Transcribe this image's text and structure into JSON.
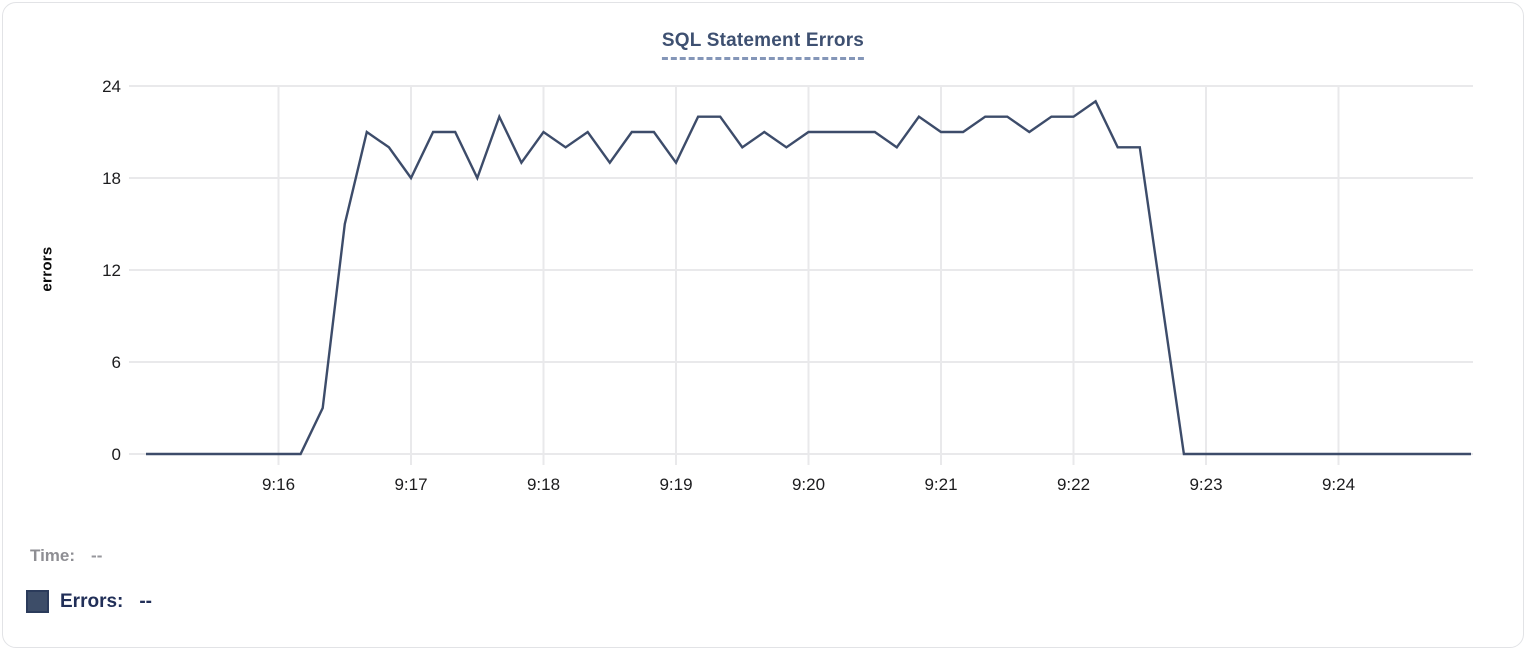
{
  "chart_data": {
    "type": "line",
    "title": "SQL Statement Errors",
    "xlabel": "",
    "ylabel": "errors",
    "ylim": [
      0,
      24
    ],
    "y_ticks": [
      0,
      6,
      12,
      18,
      24
    ],
    "x_tick_labels": [
      "9:16",
      "9:17",
      "9:18",
      "9:19",
      "9:20",
      "9:21",
      "9:22",
      "9:23",
      "9:24"
    ],
    "x_domain": [
      "9:15:00",
      "9:25:00"
    ],
    "grid": true,
    "legend_position": "bottom-left",
    "series": [
      {
        "name": "Errors",
        "color": "#3d4c6a",
        "x": [
          "9:15:00",
          "9:15:10",
          "9:15:20",
          "9:15:30",
          "9:15:40",
          "9:15:50",
          "9:16:00",
          "9:16:10",
          "9:16:20",
          "9:16:30",
          "9:16:40",
          "9:16:50",
          "9:17:00",
          "9:17:10",
          "9:17:20",
          "9:17:30",
          "9:17:40",
          "9:17:50",
          "9:18:00",
          "9:18:10",
          "9:18:20",
          "9:18:30",
          "9:18:40",
          "9:18:50",
          "9:19:00",
          "9:19:10",
          "9:19:20",
          "9:19:30",
          "9:19:40",
          "9:19:50",
          "9:20:00",
          "9:20:10",
          "9:20:20",
          "9:20:30",
          "9:20:40",
          "9:20:50",
          "9:21:00",
          "9:21:10",
          "9:21:20",
          "9:21:30",
          "9:21:40",
          "9:21:50",
          "9:22:00",
          "9:22:10",
          "9:22:20",
          "9:22:30",
          "9:22:40",
          "9:22:50",
          "9:23:00",
          "9:23:10",
          "9:23:20",
          "9:23:30",
          "9:23:40",
          "9:23:50",
          "9:24:00",
          "9:24:10",
          "9:24:20",
          "9:24:30",
          "9:24:40",
          "9:24:50",
          "9:25:00"
        ],
        "values": [
          0,
          0,
          0,
          0,
          0,
          0,
          0,
          0,
          3,
          15,
          21,
          20,
          18,
          21,
          21,
          18,
          22,
          19,
          21,
          20,
          21,
          19,
          21,
          21,
          19,
          22,
          22,
          20,
          21,
          20,
          21,
          21,
          21,
          21,
          20,
          22,
          21,
          21,
          22,
          22,
          21,
          22,
          22,
          23,
          20,
          20,
          10,
          0,
          0,
          0,
          0,
          0,
          0,
          0,
          0,
          0,
          0,
          0,
          0,
          0,
          0
        ]
      }
    ]
  },
  "readout": {
    "time_label": "Time:",
    "time_value": "--",
    "errors_label": "Errors:",
    "errors_value": "--"
  },
  "colors": {
    "line": "#3d4c6a",
    "grid": "#e9e9eb",
    "tick_label": "#1c1c1e",
    "title": "#3e5071",
    "title_underline": "#8496b8",
    "time_label": "#8e8e93",
    "errors_label": "#212f58",
    "swatch": "#3d4d68",
    "card_border": "#e2e3e6"
  }
}
